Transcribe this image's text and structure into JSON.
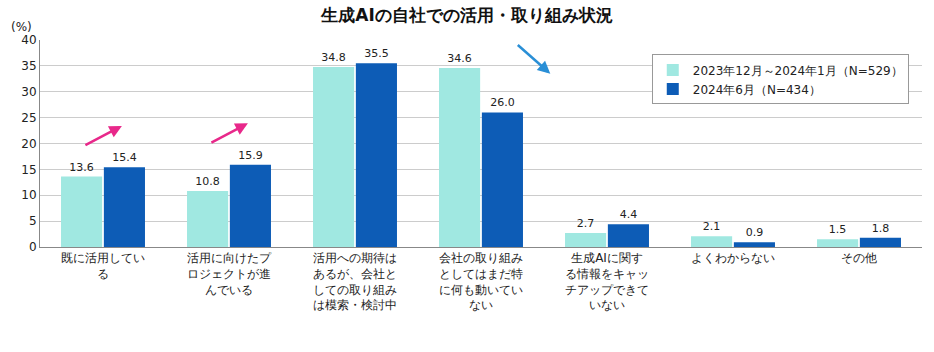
{
  "chart_data": {
    "type": "bar",
    "title": "生成AIの自社での活用・取り組み状況",
    "ylabel": "(%)",
    "categories": [
      "既に活用している",
      "活用に向けたプロジェクトが進んでいる",
      "活用への期待はあるが、会社としての取り組みは模索・検討中",
      "会社の取り組みとしてはまだ特に何も動いていない",
      "生成AIに関する情報をキャッチアップできていない",
      "よくわからない",
      "その他"
    ],
    "series": [
      {
        "name": "2023年12月～2024年1月（N=529）",
        "color": "#a0e8e1",
        "values": [
          13.6,
          10.8,
          34.8,
          34.6,
          2.7,
          2.1,
          1.5
        ],
        "value_labels": [
          "13.6",
          "10.8",
          "34.8",
          "34.6",
          "2.7",
          "2.1",
          "1.5"
        ]
      },
      {
        "name": "2024年6月（N=434）",
        "color": "#0d5cb6",
        "values": [
          15.4,
          15.9,
          35.5,
          26.0,
          4.4,
          0.9,
          1.8
        ],
        "value_labels": [
          "15.4",
          "15.9",
          "35.5",
          "26.0",
          "4.4",
          "0.9",
          "1.8"
        ]
      }
    ],
    "ylim": [
      0,
      40
    ],
    "yticks": [
      0,
      5,
      10,
      15,
      20,
      25,
      30,
      35,
      40
    ],
    "grid": true,
    "legend": "top-right",
    "data_labels": true
  }
}
